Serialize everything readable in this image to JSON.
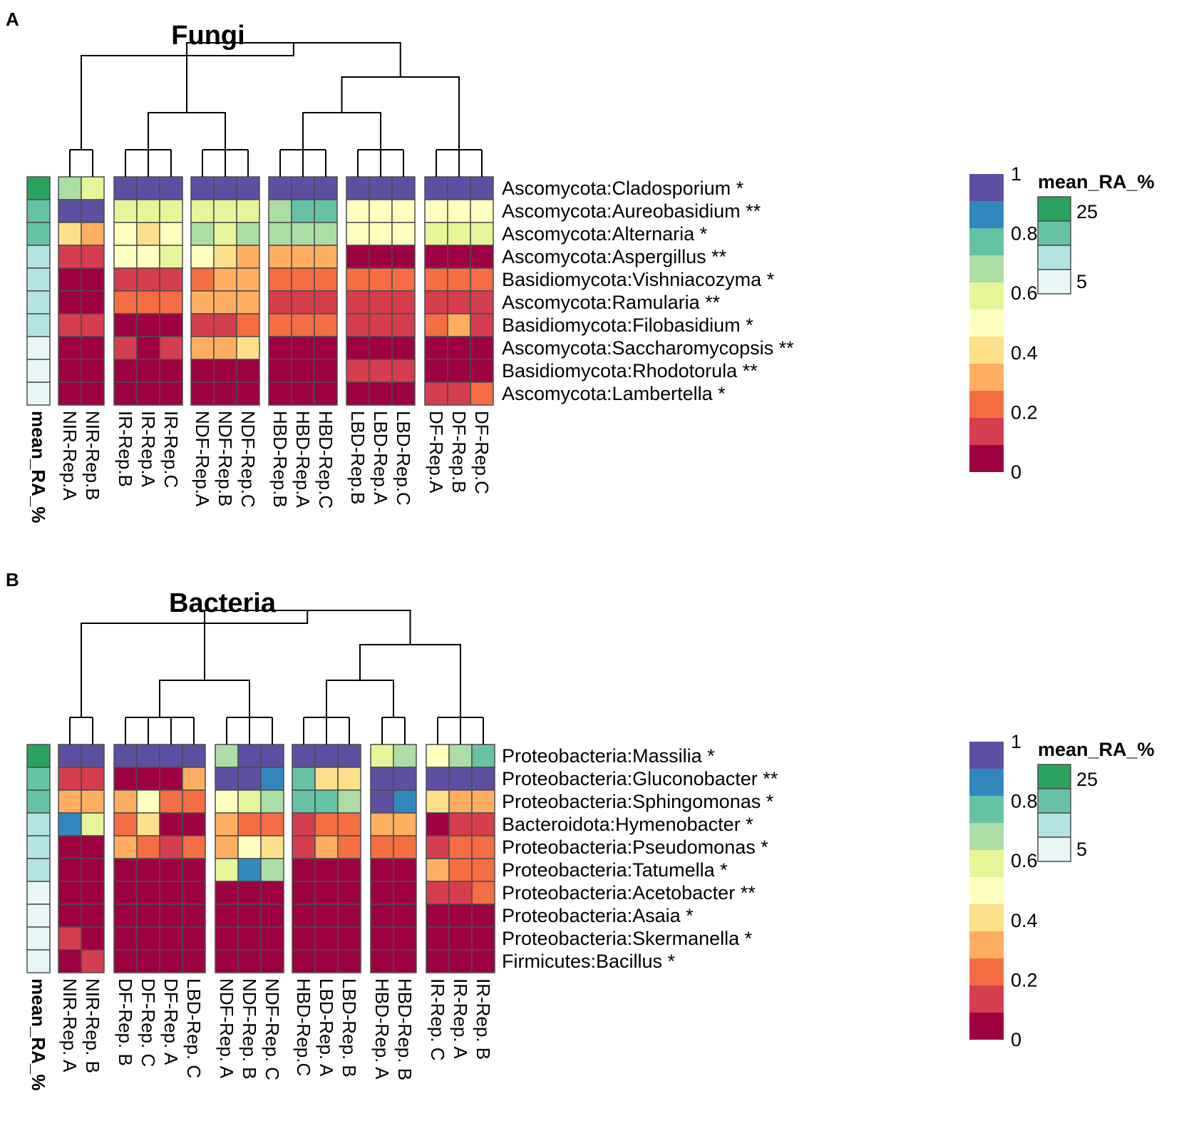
{
  "figure": {
    "panel_labels": [
      "A",
      "B"
    ]
  },
  "colors": {
    "value_scale": [
      "#9e0142",
      "#d53e4f",
      "#f46d43",
      "#fdae61",
      "#fee08b",
      "#ffffbf",
      "#e6f598",
      "#abdda4",
      "#66c2a5",
      "#3288bd",
      "#5e4fa2"
    ],
    "mean_scale": [
      "#e9f7f7",
      "#b3e3e2",
      "#66c2a5",
      "#2ca25f"
    ],
    "cell_border": "#4d4d4d"
  },
  "chart_data": [
    {
      "type": "heatmap",
      "panel": "A",
      "title": "Fungi",
      "annotation_label": "mean_RA_%",
      "columns": [
        "NIR-Rep.A",
        "NIR-Rep.B",
        "IR-Rep.B",
        "IR-Rep.A",
        "IR-Rep.C",
        "NDF-Rep.A",
        "NDF-Rep.B",
        "NDF-Rep.C",
        "HBD-Rep.B",
        "HBD-Rep.A",
        "HBD-Rep.C",
        "LBD-Rep.B",
        "LBD-Rep.A",
        "LBD-Rep.C",
        "DF-Rep.A",
        "DF-Rep.B",
        "DF-Rep.C"
      ],
      "column_groups": [
        2,
        3,
        3,
        3,
        3,
        3
      ],
      "rows": [
        "Ascomycota:Cladosporium *",
        "Ascomycota:Aureobasidium **",
        "Ascomycota:Alternaria *",
        "Ascomycota:Aspergillus **",
        "Basidiomycota:Vishniacozyma *",
        "Ascomycota:Ramularia **",
        "Basidiomycota:Filobasidium *",
        "Ascomycota:Saccharomycopsis **",
        "Basidiomycota:Rhodotorula **",
        "Ascomycota:Lambertella *"
      ],
      "mean_RA_level": [
        3,
        2,
        2,
        1,
        1,
        1,
        1,
        0,
        0,
        0
      ],
      "values": [
        [
          0.7,
          0.55,
          1,
          1,
          1,
          1,
          1,
          1,
          1,
          1,
          1,
          1,
          1,
          1,
          1,
          1,
          1
        ],
        [
          1,
          1,
          0.55,
          0.55,
          0.55,
          0.6,
          0.6,
          0.6,
          0.7,
          0.8,
          0.8,
          0.5,
          0.5,
          0.5,
          0.5,
          0.5,
          0.5
        ],
        [
          0.35,
          0.3,
          0.5,
          0.4,
          0.5,
          0.7,
          0.6,
          0.7,
          0.7,
          0.7,
          0.7,
          0.5,
          0.5,
          0.5,
          0.6,
          0.6,
          0.6
        ],
        [
          0.1,
          0.1,
          0.5,
          0.5,
          0.6,
          0.5,
          0.4,
          0.3,
          0.3,
          0.3,
          0.3,
          0,
          0,
          0,
          0,
          0,
          0
        ],
        [
          0,
          0,
          0.1,
          0.1,
          0.1,
          0.2,
          0.3,
          0.3,
          0.2,
          0.2,
          0.2,
          0.2,
          0.2,
          0.2,
          0.2,
          0.2,
          0.2
        ],
        [
          0,
          0,
          0.2,
          0.2,
          0.2,
          0.3,
          0.3,
          0.3,
          0.1,
          0.1,
          0.1,
          0.1,
          0.1,
          0.1,
          0.1,
          0.1,
          0.1
        ],
        [
          0.1,
          0.1,
          0,
          0,
          0,
          0.1,
          0.1,
          0.2,
          0.2,
          0.2,
          0.2,
          0.1,
          0.1,
          0.1,
          0.2,
          0.3,
          0.1
        ],
        [
          0,
          0,
          0.1,
          0,
          0.1,
          0.3,
          0.3,
          0.4,
          0,
          0,
          0,
          0,
          0,
          0,
          0,
          0,
          0
        ],
        [
          0,
          0,
          0,
          0,
          0,
          0,
          0,
          0,
          0,
          0,
          0,
          0.1,
          0.1,
          0.1,
          0,
          0,
          0
        ],
        [
          0,
          0,
          0,
          0,
          0,
          0,
          0,
          0,
          0,
          0,
          0,
          0,
          0,
          0,
          0.1,
          0.1,
          0.2
        ]
      ],
      "legend": {
        "values_title": "",
        "value_ticks": [
          "1",
          "0.8",
          "0.6",
          "0.4",
          "0.2",
          "0"
        ],
        "mean_title": "mean_RA_%",
        "mean_ticks": [
          "25",
          "5"
        ]
      }
    },
    {
      "type": "heatmap",
      "panel": "B",
      "title": "Bacteria",
      "annotation_label": "mean_RA_%",
      "columns": [
        "NIR-Rep. A",
        "NIR-Rep. B",
        "DF-Rep. B",
        "DF-Rep. C",
        "DF-Rep. A",
        "LBD-Rep. C",
        "NDF-Rep. A",
        "NDF-Rep. B",
        "NDF-Rep. C",
        "HBD-Rep.C",
        "LBD-Rep. A",
        "LBD-Rep. B",
        "HBD-Rep. A",
        "HBD-Rep. B",
        "IR-Rep. C",
        "IR-Rep. A",
        "IR-Rep. B"
      ],
      "column_groups": [
        2,
        4,
        3,
        3,
        2,
        3
      ],
      "rows": [
        "Proteobacteria:Massilia *",
        "Proteobacteria:Gluconobacter **",
        "Proteobacteria:Sphingomonas *",
        "Bacteroidota:Hymenobacter *",
        "Proteobacteria:Pseudomonas *",
        "Proteobacteria:Tatumella *",
        "Proteobacteria:Acetobacter **",
        "Proteobacteria:Asaia *",
        "Proteobacteria:Skermanella *",
        "Firmicutes:Bacillus *"
      ],
      "mean_RA_level": [
        3,
        2,
        2,
        1,
        1,
        1,
        0,
        0,
        0,
        0
      ],
      "values": [
        [
          1,
          1,
          1,
          1,
          1,
          1,
          0.7,
          1,
          1,
          1,
          1,
          1,
          0.6,
          0.7,
          0.5,
          0.7,
          0.8
        ],
        [
          0.1,
          0.1,
          0,
          0,
          0,
          0.3,
          1,
          1,
          0.9,
          0.8,
          0.4,
          0.4,
          1,
          1,
          1,
          1,
          1
        ],
        [
          0.3,
          0.3,
          0.3,
          0.5,
          0.2,
          0.2,
          0.5,
          0.6,
          0.7,
          0.8,
          0.8,
          0.7,
          1,
          0.9,
          0.4,
          0.3,
          0.3
        ],
        [
          0.9,
          0.6,
          0.2,
          0.4,
          0,
          0,
          0.3,
          0.2,
          0.2,
          0.1,
          0.2,
          0.2,
          0.3,
          0.3,
          0,
          0.1,
          0.1
        ],
        [
          0,
          0,
          0.3,
          0.2,
          0.1,
          0.2,
          0.3,
          0.5,
          0.4,
          0.1,
          0.3,
          0.2,
          0.2,
          0.2,
          0.1,
          0.2,
          0.2
        ],
        [
          0,
          0,
          0,
          0,
          0,
          0,
          0.6,
          0.9,
          0.7,
          0,
          0,
          0,
          0,
          0,
          0.3,
          0.2,
          0.2
        ],
        [
          0,
          0,
          0,
          0,
          0,
          0,
          0,
          0,
          0,
          0,
          0,
          0,
          0,
          0,
          0.1,
          0.1,
          0.2
        ],
        [
          0,
          0,
          0,
          0,
          0,
          0,
          0,
          0,
          0,
          0,
          0,
          0,
          0,
          0,
          0,
          0,
          0
        ],
        [
          0.1,
          0,
          0,
          0,
          0,
          0,
          0,
          0,
          0,
          0,
          0,
          0,
          0,
          0,
          0,
          0,
          0
        ],
        [
          0,
          0.1,
          0,
          0,
          0,
          0,
          0,
          0,
          0,
          0,
          0,
          0,
          0,
          0,
          0,
          0,
          0
        ]
      ],
      "legend": {
        "values_title": "",
        "value_ticks": [
          "1",
          "0.8",
          "0.6",
          "0.4",
          "0.2",
          "0"
        ],
        "mean_title": "mean_RA_%",
        "mean_ticks": [
          "25",
          "5"
        ]
      }
    }
  ]
}
